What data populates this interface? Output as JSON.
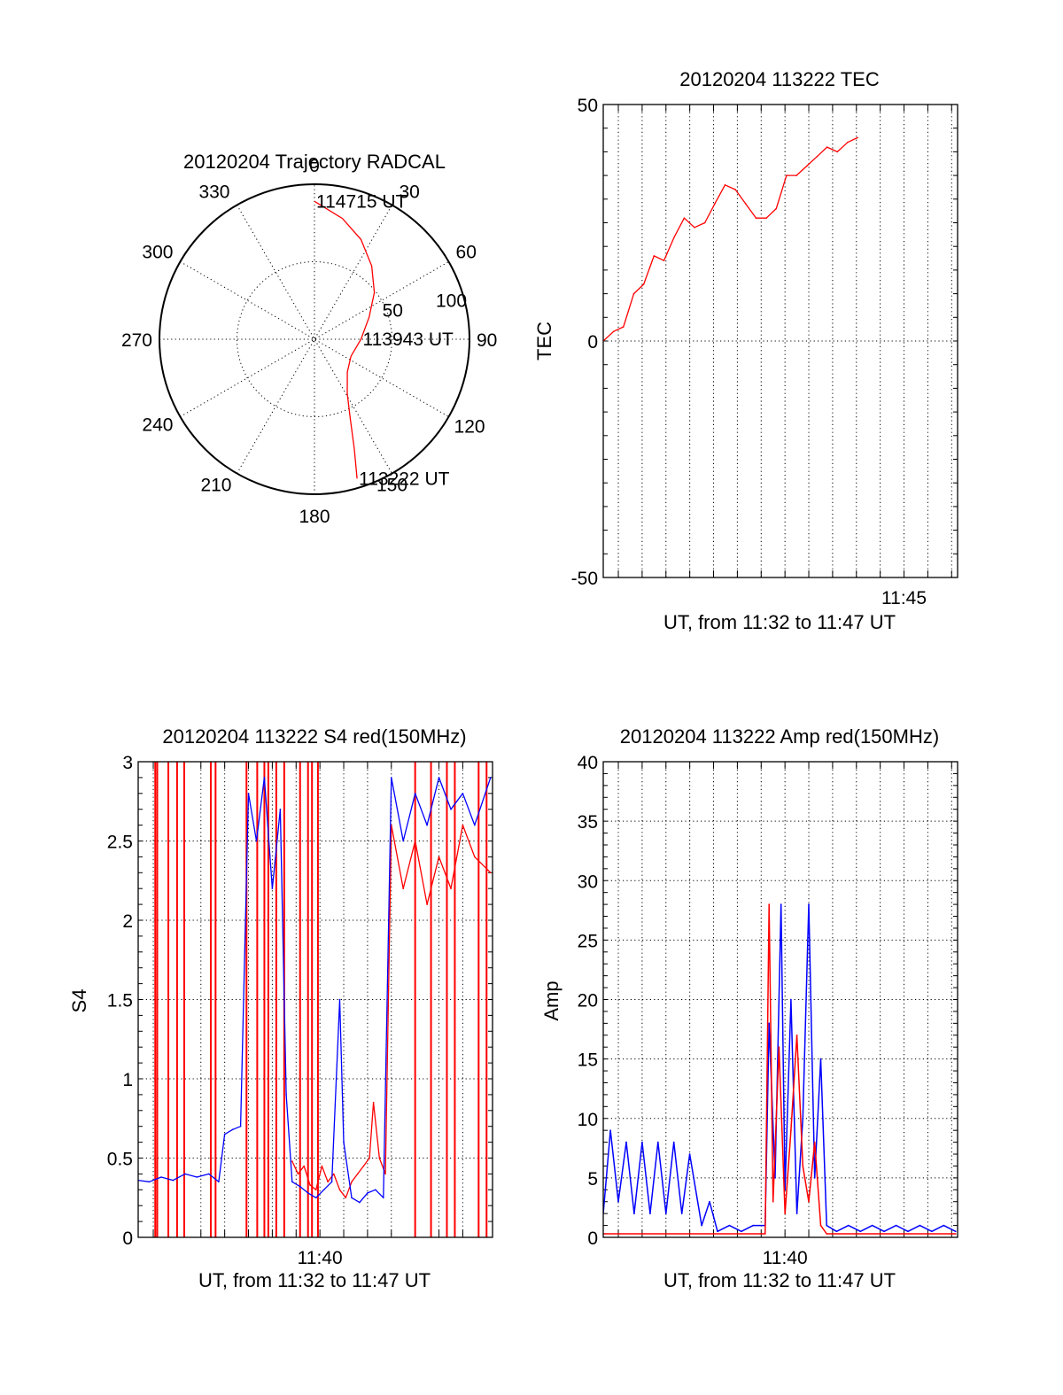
{
  "colors": {
    "red": "#ff0000",
    "blue": "#0000ff"
  },
  "chart_data": [
    {
      "type": "polar",
      "title": "20120204 Trajectory RADCAL",
      "angle_labels": [
        "0",
        "30",
        "60",
        "90",
        "120",
        "150",
        "180",
        "210",
        "240",
        "270",
        "300",
        "330"
      ],
      "radius_labels": [
        "50",
        "100"
      ],
      "rlim": [
        0,
        100
      ],
      "grid": true,
      "series": [
        {
          "color": "#ff0000",
          "points": [
            {
              "az": 163,
              "zen": 94
            },
            {
              "az": 160,
              "zen": 75
            },
            {
              "az": 156,
              "zen": 57
            },
            {
              "az": 149,
              "zen": 41
            },
            {
              "az": 135,
              "zen": 30
            },
            {
              "az": 115,
              "zen": 26
            },
            {
              "az": 90,
              "zen": 30
            },
            {
              "az": 68,
              "zen": 38
            },
            {
              "az": 52,
              "zen": 49
            },
            {
              "az": 38,
              "zen": 60
            },
            {
              "az": 25,
              "zen": 71
            },
            {
              "az": 13,
              "zen": 80
            },
            {
              "az": 0,
              "zen": 89
            }
          ]
        }
      ],
      "annotations": [
        {
          "text": "114715 UT",
          "az": 0,
          "zen": 89
        },
        {
          "text": "113943 UT",
          "az": 90,
          "zen": 30
        },
        {
          "text": "113222 UT",
          "az": 163,
          "zen": 94
        }
      ]
    },
    {
      "type": "line",
      "title": "20120204 113222 TEC",
      "xlabel": "UT, from 11:32 to 11:47 UT",
      "ylabel": "TEC",
      "xlim": [
        "11:32:22",
        "11:47:15"
      ],
      "ylim": [
        -50,
        50
      ],
      "yticks": [
        "-50",
        "0",
        "50"
      ],
      "xtick_labels": [
        {
          "time": "11:45",
          "label": "11:45"
        }
      ],
      "grid": true,
      "series": [
        {
          "color": "#ff0000",
          "points": [
            [
              "11:32:22",
              0
            ],
            [
              "11:32:48",
              2
            ],
            [
              "11:33:13",
              3
            ],
            [
              "11:33:39",
              10
            ],
            [
              "11:34:04",
              12
            ],
            [
              "11:34:30",
              18
            ],
            [
              "11:34:55",
              17
            ],
            [
              "11:35:21",
              22
            ],
            [
              "11:35:46",
              26
            ],
            [
              "11:36:12",
              24
            ],
            [
              "11:36:38",
              25
            ],
            [
              "11:37:03",
              29
            ],
            [
              "11:37:29",
              33
            ],
            [
              "11:37:55",
              32
            ],
            [
              "11:38:21",
              29
            ],
            [
              "11:38:47",
              26
            ],
            [
              "11:39:13",
              26
            ],
            [
              "11:39:38",
              28
            ],
            [
              "11:40:04",
              35
            ],
            [
              "11:40:29",
              35
            ],
            [
              "11:40:55",
              37
            ],
            [
              "11:41:21",
              39
            ],
            [
              "11:41:46",
              41
            ],
            [
              "11:42:12",
              40
            ],
            [
              "11:42:38",
              42
            ],
            [
              "11:43:03",
              43
            ]
          ]
        }
      ]
    },
    {
      "type": "line",
      "title": "20120204 113222 S4 red(150MHz)",
      "xlabel": "UT, from 11:32 to 11:47 UT",
      "ylabel": "S4",
      "xlim": [
        "11:32:22",
        "11:47:15"
      ],
      "ylim": [
        0,
        3
      ],
      "yticks": [
        "0",
        "0.5",
        "1",
        "1.5",
        "2",
        "2.5",
        "3"
      ],
      "xtick_labels": [
        {
          "time": "11:40",
          "label": "11:40"
        }
      ],
      "grid": true,
      "series": [
        {
          "color": "#ff0000",
          "spikes_at": [
            "11:33:05",
            "11:33:10",
            "11:33:38",
            "11:34:00",
            "11:34:18",
            "11:35:25",
            "11:35:37",
            "11:36:55",
            "11:37:22",
            "11:37:40",
            "11:37:50",
            "11:38:10",
            "11:38:30",
            "11:39:10",
            "11:39:30",
            "11:39:40",
            "11:39:55",
            "11:44:00",
            "11:44:40",
            "11:45:20",
            "11:45:40",
            "11:46:40",
            "11:47:00"
          ],
          "points": [
            [
              "11:38:50",
              0.48
            ],
            [
              "11:39:05",
              0.4
            ],
            [
              "11:39:20",
              0.45
            ],
            [
              "11:39:35",
              0.33
            ],
            [
              "11:39:50",
              0.3
            ],
            [
              "11:40:05",
              0.45
            ],
            [
              "11:40:20",
              0.35
            ],
            [
              "11:40:35",
              0.4
            ],
            [
              "11:40:50",
              0.3
            ],
            [
              "11:41:05",
              0.25
            ],
            [
              "11:41:20",
              0.35
            ],
            [
              "11:41:35",
              0.4
            ],
            [
              "11:41:50",
              0.45
            ],
            [
              "11:42:05",
              0.5
            ],
            [
              "11:42:15",
              0.85
            ],
            [
              "11:42:30",
              0.5
            ],
            [
              "11:42:45",
              0.4
            ],
            [
              "11:43:00",
              2.6
            ],
            [
              "11:43:30",
              2.2
            ],
            [
              "11:44:00",
              2.5
            ],
            [
              "11:44:30",
              2.1
            ],
            [
              "11:45:00",
              2.4
            ],
            [
              "11:45:30",
              2.2
            ],
            [
              "11:46:00",
              2.6
            ],
            [
              "11:46:30",
              2.4
            ],
            [
              "11:47:10",
              2.3
            ]
          ]
        },
        {
          "color": "#0000ff",
          "points": [
            [
              "11:32:22",
              0.36
            ],
            [
              "11:32:50",
              0.35
            ],
            [
              "11:33:20",
              0.38
            ],
            [
              "11:33:50",
              0.36
            ],
            [
              "11:34:20",
              0.4
            ],
            [
              "11:34:50",
              0.38
            ],
            [
              "11:35:20",
              0.4
            ],
            [
              "11:35:45",
              0.35
            ],
            [
              "11:36:00",
              0.65
            ],
            [
              "11:36:20",
              0.68
            ],
            [
              "11:36:40",
              0.7
            ],
            [
              "11:37:00",
              2.8
            ],
            [
              "11:37:20",
              2.5
            ],
            [
              "11:37:40",
              2.9
            ],
            [
              "11:38:00",
              2.2
            ],
            [
              "11:38:20",
              2.7
            ],
            [
              "11:38:35",
              0.9
            ],
            [
              "11:38:50",
              0.35
            ],
            [
              "11:39:10",
              0.32
            ],
            [
              "11:39:30",
              0.28
            ],
            [
              "11:39:50",
              0.25
            ],
            [
              "11:40:10",
              0.3
            ],
            [
              "11:40:30",
              0.35
            ],
            [
              "11:40:50",
              1.5
            ],
            [
              "11:41:00",
              0.6
            ],
            [
              "11:41:20",
              0.25
            ],
            [
              "11:41:40",
              0.22
            ],
            [
              "11:42:00",
              0.28
            ],
            [
              "11:42:20",
              0.3
            ],
            [
              "11:42:40",
              0.25
            ],
            [
              "11:43:00",
              2.9
            ],
            [
              "11:43:30",
              2.5
            ],
            [
              "11:44:00",
              2.8
            ],
            [
              "11:44:30",
              2.6
            ],
            [
              "11:45:00",
              2.9
            ],
            [
              "11:45:30",
              2.7
            ],
            [
              "11:46:00",
              2.8
            ],
            [
              "11:46:30",
              2.6
            ],
            [
              "11:47:10",
              2.9
            ]
          ]
        }
      ]
    },
    {
      "type": "line",
      "title": "20120204 113222 Amp red(150MHz)",
      "xlabel": "UT, from 11:32 to 11:47 UT",
      "ylabel": "Amp",
      "xlim": [
        "11:32:22",
        "11:47:15"
      ],
      "ylim": [
        0,
        40
      ],
      "yticks": [
        "0",
        "5",
        "10",
        "15",
        "20",
        "25",
        "30",
        "35",
        "40"
      ],
      "xtick_labels": [
        {
          "time": "11:40",
          "label": "11:40"
        }
      ],
      "grid": true,
      "series": [
        {
          "color": "#0000ff",
          "points": [
            [
              "11:32:22",
              2
            ],
            [
              "11:32:40",
              9
            ],
            [
              "11:33:00",
              3
            ],
            [
              "11:33:20",
              8
            ],
            [
              "11:33:40",
              2
            ],
            [
              "11:34:00",
              8
            ],
            [
              "11:34:20",
              2
            ],
            [
              "11:34:40",
              8
            ],
            [
              "11:35:00",
              2
            ],
            [
              "11:35:20",
              8
            ],
            [
              "11:35:40",
              2
            ],
            [
              "11:36:00",
              7
            ],
            [
              "11:36:30",
              1
            ],
            [
              "11:36:50",
              3
            ],
            [
              "11:37:10",
              0.5
            ],
            [
              "11:37:40",
              1
            ],
            [
              "11:38:10",
              0.5
            ],
            [
              "11:38:40",
              1
            ],
            [
              "11:39:10",
              1
            ],
            [
              "11:39:20",
              18
            ],
            [
              "11:39:35",
              5
            ],
            [
              "11:39:50",
              28
            ],
            [
              "11:40:00",
              4
            ],
            [
              "11:40:15",
              20
            ],
            [
              "11:40:30",
              2
            ],
            [
              "11:40:45",
              10
            ],
            [
              "11:41:00",
              28
            ],
            [
              "11:41:15",
              5
            ],
            [
              "11:41:30",
              15
            ],
            [
              "11:41:45",
              1
            ],
            [
              "11:42:10",
              0.5
            ],
            [
              "11:42:40",
              1
            ],
            [
              "11:43:10",
              0.5
            ],
            [
              "11:43:40",
              1
            ],
            [
              "11:44:10",
              0.5
            ],
            [
              "11:44:40",
              1
            ],
            [
              "11:45:10",
              0.5
            ],
            [
              "11:45:40",
              1
            ],
            [
              "11:46:10",
              0.5
            ],
            [
              "11:46:40",
              1
            ],
            [
              "11:47:10",
              0.5
            ]
          ]
        },
        {
          "color": "#ff0000",
          "points": [
            [
              "11:32:22",
              0.3
            ],
            [
              "11:34:00",
              0.3
            ],
            [
              "11:36:00",
              0.3
            ],
            [
              "11:39:10",
              0.3
            ],
            [
              "11:39:20",
              28
            ],
            [
              "11:39:30",
              3
            ],
            [
              "11:39:45",
              16
            ],
            [
              "11:40:00",
              2
            ],
            [
              "11:40:15",
              9
            ],
            [
              "11:40:30",
              17
            ],
            [
              "11:40:45",
              6
            ],
            [
              "11:41:00",
              3
            ],
            [
              "11:41:15",
              8
            ],
            [
              "11:41:30",
              1
            ],
            [
              "11:41:45",
              0.3
            ],
            [
              "11:47:10",
              0.3
            ]
          ]
        }
      ]
    }
  ]
}
